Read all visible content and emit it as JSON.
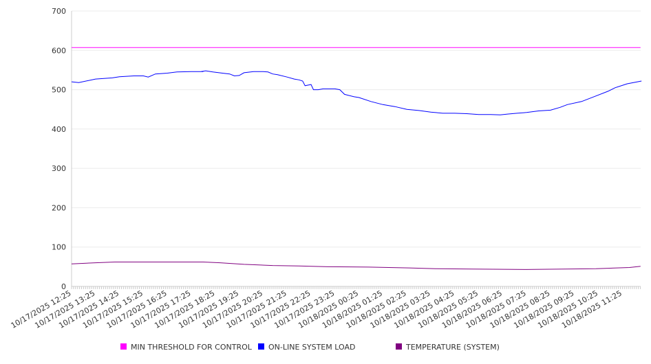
{
  "chart_data": {
    "type": "line",
    "title": "",
    "xlabel": "",
    "ylabel": "",
    "ylim": [
      0,
      700
    ],
    "yticks": [
      0,
      100,
      200,
      300,
      400,
      500,
      600,
      700
    ],
    "grid": true,
    "legend_position": "bottom",
    "x_hours_range": [
      0,
      23.76
    ],
    "xtick_labels": [
      "10/17/2025 12:25",
      "10/17/2025 13:25",
      "10/17/2025 14:25",
      "10/17/2025 15:25",
      "10/17/2025 16:25",
      "10/17/2025 17:25",
      "10/17/2025 18:25",
      "10/17/2025 19:25",
      "10/17/2025 20:25",
      "10/17/2025 21:25",
      "10/17/2025 22:25",
      "10/17/2025 23:25",
      "10/18/2025 00:25",
      "10/18/2025 01:25",
      "10/18/2025 02:25",
      "10/18/2025 03:25",
      "10/18/2025 04:25",
      "10/18/2025 05:25",
      "10/18/2025 06:25",
      "10/18/2025 07:25",
      "10/18/2025 08:25",
      "10/18/2025 09:25",
      "10/18/2025 10:25",
      "10/18/2025 11:25"
    ],
    "series": [
      {
        "name": "MIN THRESHOLD FOR CONTROL",
        "color": "#ff00ff",
        "points": [
          [
            0,
            607
          ],
          [
            23.76,
            607
          ]
        ]
      },
      {
        "name": "ON-LINE SYSTEM LOAD",
        "color": "#0000ff",
        "points": [
          [
            0,
            520
          ],
          [
            0.3,
            518
          ],
          [
            1,
            527
          ],
          [
            1.7,
            530
          ],
          [
            2,
            533
          ],
          [
            2.6,
            535
          ],
          [
            3,
            535
          ],
          [
            3.2,
            532
          ],
          [
            3.5,
            540
          ],
          [
            4,
            542
          ],
          [
            4.4,
            545
          ],
          [
            5,
            546
          ],
          [
            5.5,
            546
          ],
          [
            5.4,
            546
          ],
          [
            5.6,
            548
          ],
          [
            5.9,
            545
          ],
          [
            6.3,
            542
          ],
          [
            6.6,
            540
          ],
          [
            6.8,
            535
          ],
          [
            7,
            536
          ],
          [
            7.2,
            543
          ],
          [
            7.6,
            546
          ],
          [
            8,
            546
          ],
          [
            8.2,
            545
          ],
          [
            8.4,
            540
          ],
          [
            8.6,
            538
          ],
          [
            9,
            532
          ],
          [
            9.3,
            527
          ],
          [
            9.5,
            525
          ],
          [
            9.65,
            522
          ],
          [
            9.75,
            510
          ],
          [
            9.9,
            512
          ],
          [
            10,
            513
          ],
          [
            10.1,
            500
          ],
          [
            10.3,
            500
          ],
          [
            10.5,
            502
          ],
          [
            11,
            502
          ],
          [
            11.2,
            500
          ],
          [
            11.4,
            488
          ],
          [
            11.8,
            482
          ],
          [
            12,
            480
          ],
          [
            12.5,
            470
          ],
          [
            13,
            462
          ],
          [
            13.5,
            457
          ],
          [
            14,
            450
          ],
          [
            14.5,
            447
          ],
          [
            15,
            443
          ],
          [
            15.5,
            440
          ],
          [
            16,
            440
          ],
          [
            16.5,
            439
          ],
          [
            17,
            437
          ],
          [
            17.5,
            437
          ],
          [
            17.9,
            436
          ],
          [
            18.2,
            438
          ],
          [
            18.6,
            440
          ],
          [
            19,
            442
          ],
          [
            19.5,
            446
          ],
          [
            20,
            448
          ],
          [
            20.4,
            455
          ],
          [
            20.7,
            462
          ],
          [
            21.3,
            470
          ],
          [
            21.9,
            484
          ],
          [
            22.4,
            496
          ],
          [
            22.7,
            505
          ],
          [
            23.2,
            515
          ],
          [
            23.8,
            522
          ]
        ]
      },
      {
        "name": "TEMPERATURE (SYSTEM)",
        "color": "#800080",
        "points": [
          [
            0,
            57
          ],
          [
            1,
            60
          ],
          [
            1.8,
            62
          ],
          [
            5.5,
            62
          ],
          [
            6.2,
            60
          ],
          [
            7.2,
            56
          ],
          [
            8.4,
            53
          ],
          [
            9.5,
            52
          ],
          [
            10.7,
            50
          ],
          [
            12.4,
            49
          ],
          [
            14.1,
            47
          ],
          [
            15.2,
            45
          ],
          [
            16.7,
            44
          ],
          [
            19.0,
            43
          ],
          [
            21.9,
            45
          ],
          [
            23.3,
            48
          ],
          [
            23.76,
            51
          ]
        ]
      }
    ]
  },
  "legend": [
    {
      "label": "MIN THRESHOLD FOR CONTROL",
      "color": "#ff00ff"
    },
    {
      "label": "ON-LINE SYSTEM LOAD",
      "color": "#0000ff"
    },
    {
      "label": "TEMPERATURE (SYSTEM)",
      "color": "#800080"
    }
  ]
}
